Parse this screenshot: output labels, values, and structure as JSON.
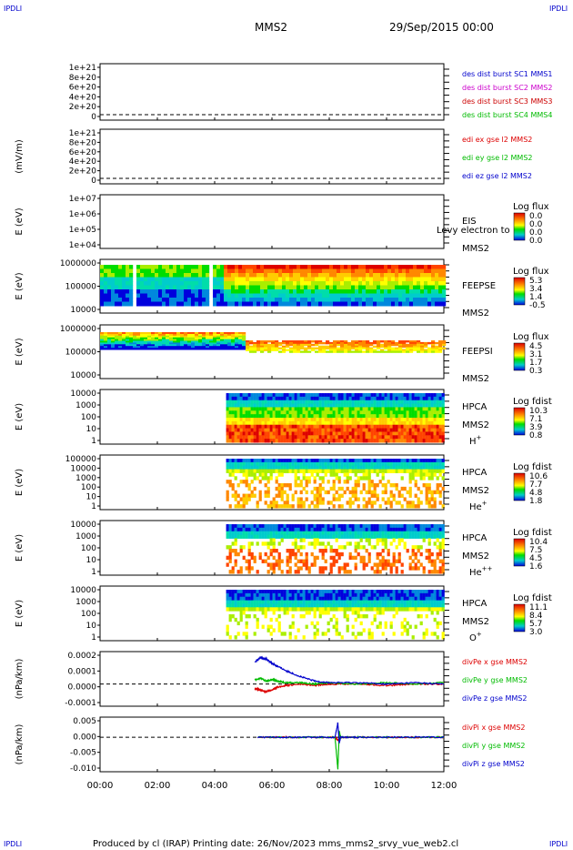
{
  "header": {
    "corner": "IPDLI",
    "title": "MMS2",
    "datetime": "29/Sep/2015 00:00"
  },
  "footer": {
    "text": "Produced by cl (IRAP)   Printing date: 26/Nov/2023   mms_mms2_srvy_vue_web2.cl"
  },
  "xaxis": {
    "ticks": [
      "00:00",
      "02:00",
      "04:00",
      "06:00",
      "08:00",
      "10:00",
      "12:00"
    ],
    "range_hours": [
      0,
      12
    ]
  },
  "colors": {
    "mms1": "#0000cc",
    "mms2": "#cc00cc",
    "mms3": "#cc0000",
    "mms4": "#00bb00",
    "red": "#dd0000",
    "green": "#00bb00",
    "blue": "#0000cc"
  },
  "chart_data": [
    {
      "type": "line",
      "panel": "des-dist",
      "ylabel": "",
      "yticks": [
        "1e+21",
        "8e+20",
        "6e+20",
        "4e+20",
        "2e+20",
        "0"
      ],
      "legend": [
        {
          "text": "des dist burst SC1 MMS1",
          "color": "#0000cc"
        },
        {
          "text": "des dist burst SC2 MMS2",
          "color": "#cc00cc"
        },
        {
          "text": "des dist burst SC3 MMS3",
          "color": "#cc0000"
        },
        {
          "text": "des dist burst SC4 MMS4",
          "color": "#00bb00"
        }
      ],
      "zero_line": true,
      "series": []
    },
    {
      "type": "line",
      "panel": "edi-e",
      "ylabel": "(mV/m)",
      "yticks": [
        "1e+21",
        "8e+20",
        "6e+20",
        "4e+20",
        "2e+20",
        "0"
      ],
      "legend": [
        {
          "text": "edi ex gse l2 MMS2",
          "color": "#dd0000"
        },
        {
          "text": "edi ey gse l2 MMS2",
          "color": "#00bb00"
        },
        {
          "text": "edi ez gse l2 MMS2",
          "color": "#0000cc"
        }
      ],
      "zero_line": true,
      "series": []
    },
    {
      "type": "heatmap",
      "panel": "eis",
      "ylabel": "E (eV)",
      "yticks": [
        "1e+07",
        "1e+06",
        "1e+05",
        "1e+04"
      ],
      "instrument": [
        "EIS",
        "MMS2"
      ],
      "overlay_text": "Levy electron to",
      "colorbar": {
        "title": "Log flux",
        "ticks": [
          "0.0",
          "0.0",
          "0.0",
          "0.0"
        ]
      }
    },
    {
      "type": "heatmap",
      "panel": "feeps-e",
      "ylabel": "E (eV)",
      "yticks": [
        "1000000",
        "100000",
        "10000"
      ],
      "instrument": [
        "FEEPSE",
        "MMS2"
      ],
      "colorbar": {
        "title": "Log flux",
        "ticks": [
          "5.3",
          "3.4",
          "1.4",
          "-0.5"
        ]
      }
    },
    {
      "type": "heatmap",
      "panel": "feeps-i",
      "ylabel": "E (eV)",
      "yticks": [
        "1000000",
        "100000",
        "10000"
      ],
      "instrument": [
        "FEEPSI",
        "MMS2"
      ],
      "colorbar": {
        "title": "Log flux",
        "ticks": [
          "4.5",
          "3.1",
          "1.7",
          "0.3"
        ]
      }
    },
    {
      "type": "heatmap",
      "panel": "hpca-h",
      "ylabel": "E (eV)",
      "yticks": [
        "10000",
        "1000",
        "100",
        "10",
        "1"
      ],
      "instrument": [
        "HPCA",
        "MMS2"
      ],
      "species": {
        "base": "H",
        "sup": "+"
      },
      "colorbar": {
        "title": "Log fdist",
        "ticks": [
          "10.3",
          "7.1",
          "3.9",
          "0.8"
        ]
      }
    },
    {
      "type": "heatmap",
      "panel": "hpca-he",
      "ylabel": "E (eV)",
      "yticks": [
        "100000",
        "10000",
        "1000",
        "100",
        "10",
        "1"
      ],
      "instrument": [
        "HPCA",
        "MMS2"
      ],
      "species": {
        "base": "He",
        "sup": "+"
      },
      "colorbar": {
        "title": "Log fdist",
        "ticks": [
          "10.6",
          "7.7",
          "4.8",
          "1.8"
        ]
      }
    },
    {
      "type": "heatmap",
      "panel": "hpca-hepp",
      "ylabel": "E (eV)",
      "yticks": [
        "10000",
        "1000",
        "100",
        "10",
        "1"
      ],
      "instrument": [
        "HPCA",
        "MMS2"
      ],
      "species": {
        "base": "He",
        "sup": "++"
      },
      "colorbar": {
        "title": "Log fdist",
        "ticks": [
          "10.4",
          "7.5",
          "4.5",
          "1.6"
        ]
      }
    },
    {
      "type": "heatmap",
      "panel": "hpca-o",
      "ylabel": "E (eV)",
      "yticks": [
        "10000",
        "1000",
        "100",
        "10",
        "1"
      ],
      "instrument": [
        "HPCA",
        "MMS2"
      ],
      "species": {
        "base": "O",
        "sup": "+"
      },
      "colorbar": {
        "title": "Log fdist",
        "ticks": [
          "11.1",
          "8.4",
          "5.7",
          "3.0"
        ]
      }
    },
    {
      "type": "line",
      "panel": "divpe",
      "ylabel": "(nPa/km)",
      "yticks": [
        "0.0002",
        "0.0001",
        "0.0000",
        "-0.0001"
      ],
      "ylim": [
        -0.00015,
        0.00022
      ],
      "zero_line": true,
      "legend": [
        {
          "text": "divPe x gse MMS2",
          "color": "#dd0000"
        },
        {
          "text": "divPe y gse MMS2",
          "color": "#00bb00"
        },
        {
          "text": "divPe z gse MMS2",
          "color": "#0000cc"
        }
      ],
      "series": [
        {
          "color": "#dd0000",
          "x": [
            5.4,
            5.6,
            5.8,
            6.0,
            6.2,
            6.5,
            7.0,
            7.5,
            8.0,
            9.0,
            10.0,
            11.0,
            12.0
          ],
          "y": [
            -3e-05,
            -4e-05,
            -5e-05,
            -4e-05,
            -2e-05,
            -1e-05,
            0.0,
            -1e-05,
            0.0,
            0.0,
            -1e-05,
            0.0,
            0.0
          ]
        },
        {
          "color": "#00bb00",
          "x": [
            5.4,
            5.6,
            5.8,
            6.0,
            6.2,
            6.5,
            7.0,
            7.5,
            8.0,
            9.0,
            10.0,
            11.0,
            12.0
          ],
          "y": [
            3e-05,
            4e-05,
            2e-05,
            3e-05,
            2e-05,
            1e-05,
            1e-05,
            0.0,
            1e-05,
            0.0,
            1e-05,
            0.0,
            1e-05
          ]
        },
        {
          "color": "#0000cc",
          "x": [
            5.4,
            5.6,
            5.8,
            6.0,
            6.2,
            6.5,
            7.0,
            7.5,
            8.0,
            9.0,
            10.0,
            11.0,
            12.0
          ],
          "y": [
            0.00015,
            0.00018,
            0.00017,
            0.00014,
            0.00012,
            9e-05,
            5e-05,
            2e-05,
            1e-05,
            1e-05,
            0.0,
            1e-05,
            0.0
          ]
        }
      ]
    },
    {
      "type": "line",
      "panel": "divpi",
      "ylabel": "(nPa/km)",
      "yticks": [
        "0.005",
        "0.000",
        "-0.005",
        "-0.010"
      ],
      "ylim": [
        -0.012,
        0.007
      ],
      "zero_line": true,
      "legend": [
        {
          "text": "divPi x gse MMS2",
          "color": "#dd0000"
        },
        {
          "text": "divPi y gse MMS2",
          "color": "#00bb00"
        },
        {
          "text": "divPi z gse MMS2",
          "color": "#0000cc"
        }
      ],
      "series": [
        {
          "color": "#dd0000",
          "x": [
            5.5,
            6.5,
            7.5,
            8.2,
            8.3,
            8.4,
            9.0,
            10.0,
            11.0,
            12.0
          ],
          "y": [
            0,
            0,
            0,
            0,
            -0.001,
            0,
            0,
            0,
            0,
            0
          ]
        },
        {
          "color": "#00bb00",
          "x": [
            5.5,
            6.5,
            7.5,
            8.2,
            8.3,
            8.35,
            8.4,
            9.0,
            10.0,
            11.0,
            12.0
          ],
          "y": [
            0,
            0,
            0,
            0,
            -0.011,
            0.002,
            0,
            0,
            0,
            0,
            0
          ]
        },
        {
          "color": "#0000cc",
          "x": [
            5.5,
            6.5,
            7.5,
            8.2,
            8.3,
            8.35,
            8.4,
            9.0,
            10.0,
            11.0,
            12.0
          ],
          "y": [
            0,
            0,
            0,
            0,
            0.005,
            -0.002,
            0,
            0,
            0,
            0,
            0
          ]
        }
      ]
    }
  ]
}
